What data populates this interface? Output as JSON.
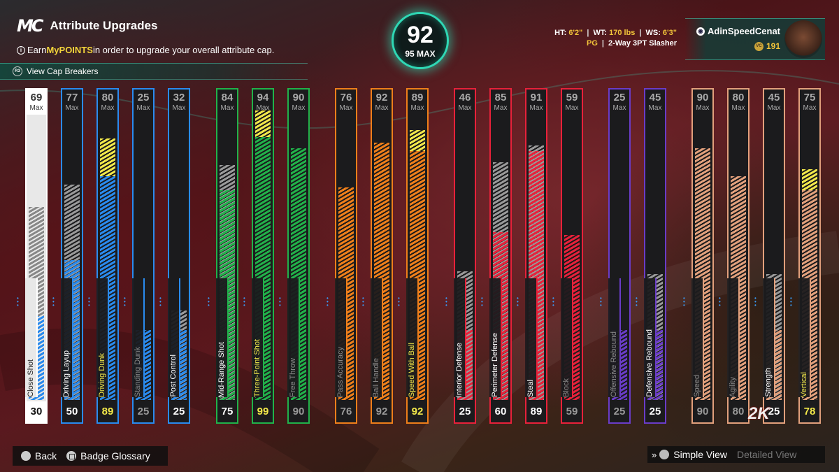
{
  "header": {
    "logo": "MC",
    "title": "Attribute Upgrades",
    "hint_pre": "Earn ",
    "hint_hl": "MyPOINTS",
    "hint_post": " in order to upgrade your overall attribute cap.",
    "cap_breakers": "View Cap Breakers"
  },
  "overall": {
    "value": "92",
    "max": "95 MAX"
  },
  "bio": {
    "ht_label": "HT:",
    "ht": "6'2\"",
    "wt_label": "WT:",
    "wt": "170 lbs",
    "ws_label": "WS:",
    "ws": "6'3\"",
    "pos": "PG",
    "archetype": "2-Way 3PT Slasher"
  },
  "player": {
    "name": "AdinSpeedCenat",
    "vc": "191"
  },
  "colors": {
    "inside": "#2a8bef",
    "shooting": "#21b24a",
    "playmaking": "#ef7f1a",
    "defense": "#e8213a",
    "rebound": "#6a3cc8",
    "athletic": "#e2a07c",
    "grey": "#9a9a9a",
    "upgrade": "#f2e84a"
  },
  "attributes": [
    {
      "name": "Close Shot",
      "cap": "69",
      "max_label": "Max",
      "current": "30",
      "group": "close",
      "cur_val": 30,
      "cap_val": 69,
      "upg": 0
    },
    {
      "name": "Driving Layup",
      "cap": "77",
      "max_label": "Max",
      "current": "50",
      "group": "inside",
      "cur_val": 50,
      "cap_val": 77,
      "upg": 0
    },
    {
      "name": "Driving Dunk",
      "cap": "80",
      "max_label": "Max",
      "current": "89",
      "group": "inside",
      "cur_val": 89,
      "cap_val": 80,
      "upg": 1
    },
    {
      "name": "Standing Dunk",
      "cap": "25",
      "max_label": "Max",
      "current": "25",
      "group": "inside",
      "cur_val": 25,
      "cap_val": 25,
      "upg": 0
    },
    {
      "name": "Post Control",
      "cap": "32",
      "max_label": "Max",
      "current": "25",
      "group": "inside",
      "cur_val": 25,
      "cap_val": 32,
      "upg": 0
    },
    {
      "name": "Mid-Range Shot",
      "cap": "84",
      "max_label": "Max",
      "current": "75",
      "group": "shooting",
      "cur_val": 75,
      "cap_val": 84,
      "upg": 0
    },
    {
      "name": "Three-Point Shot",
      "cap": "94",
      "max_label": "Max",
      "current": "99",
      "group": "shooting",
      "cur_val": 99,
      "cap_val": 94,
      "upg": 1
    },
    {
      "name": "Free Throw",
      "cap": "90",
      "max_label": "Max",
      "current": "90",
      "group": "shooting",
      "cur_val": 90,
      "cap_val": 90,
      "upg": 0
    },
    {
      "name": "Pass Accuracy",
      "cap": "76",
      "max_label": "Max",
      "current": "76",
      "group": "playmaking",
      "cur_val": 76,
      "cap_val": 76,
      "upg": 0
    },
    {
      "name": "Ball Handle",
      "cap": "92",
      "max_label": "Max",
      "current": "92",
      "group": "playmaking",
      "cur_val": 92,
      "cap_val": 92,
      "upg": 0
    },
    {
      "name": "Speed With Ball",
      "cap": "89",
      "max_label": "Max",
      "current": "92",
      "group": "playmaking",
      "cur_val": 92,
      "cap_val": 89,
      "upg": 1
    },
    {
      "name": "Interior Defense",
      "cap": "46",
      "max_label": "Max",
      "current": "25",
      "group": "defense",
      "cur_val": 25,
      "cap_val": 46,
      "upg": 0
    },
    {
      "name": "Perimeter Defense",
      "cap": "85",
      "max_label": "Max",
      "current": "60",
      "group": "defense",
      "cur_val": 60,
      "cap_val": 85,
      "upg": 0
    },
    {
      "name": "Steal",
      "cap": "91",
      "max_label": "Max",
      "current": "89",
      "group": "defense",
      "cur_val": 89,
      "cap_val": 91,
      "upg": 0
    },
    {
      "name": "Block",
      "cap": "59",
      "max_label": "Max",
      "current": "59",
      "group": "defense",
      "cur_val": 59,
      "cap_val": 59,
      "upg": 0
    },
    {
      "name": "Offensive Rebound",
      "cap": "25",
      "max_label": "Max",
      "current": "25",
      "group": "rebound",
      "cur_val": 25,
      "cap_val": 25,
      "upg": 0
    },
    {
      "name": "Defensive Rebound",
      "cap": "45",
      "max_label": "Max",
      "current": "25",
      "group": "rebound",
      "cur_val": 25,
      "cap_val": 45,
      "upg": 0
    },
    {
      "name": "Speed",
      "cap": "90",
      "max_label": "Max",
      "current": "90",
      "group": "athletic",
      "cur_val": 90,
      "cap_val": 90,
      "upg": 0
    },
    {
      "name": "Agility",
      "cap": "80",
      "max_label": "Max",
      "current": "80",
      "group": "athletic",
      "cur_val": 80,
      "cap_val": 80,
      "upg": 0
    },
    {
      "name": "Strength",
      "cap": "45",
      "max_label": "Max",
      "current": "25",
      "group": "athletic",
      "cur_val": 25,
      "cap_val": 45,
      "upg": 0
    },
    {
      "name": "Vertical",
      "cap": "75",
      "max_label": "Max",
      "current": "78",
      "group": "athletic",
      "cur_val": 78,
      "cap_val": 75,
      "upg": 1
    }
  ],
  "footer": {
    "back": "Back",
    "badge_glossary": "Badge Glossary",
    "simple_view": "Simple View",
    "detailed_view": "Detailed View"
  }
}
